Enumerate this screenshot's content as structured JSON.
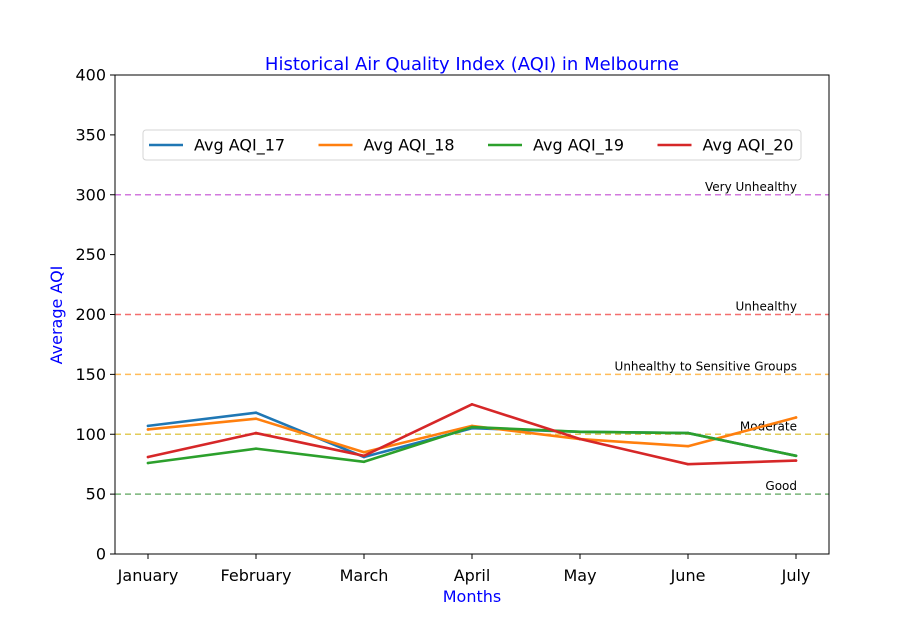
{
  "chart_data": {
    "type": "line",
    "title": "Historical Air Quality Index (AQI) in Melbourne",
    "xlabel": "Months",
    "ylabel": "Average AQI",
    "categories": [
      "January",
      "February",
      "March",
      "April",
      "May",
      "June",
      "July"
    ],
    "ylim": [
      0,
      400
    ],
    "yticks": [
      "0",
      "50",
      "100",
      "150",
      "200",
      "250",
      "300",
      "350",
      "400"
    ],
    "grid": false,
    "legend_position": "top",
    "series": [
      {
        "name": "Avg AQI_17",
        "color": "#1f77b4",
        "values": [
          107,
          118,
          81,
          105,
          102,
          101,
          82
        ]
      },
      {
        "name": "Avg AQI_18",
        "color": "#ff7f0e",
        "values": [
          104,
          113,
          85,
          107,
          96,
          90,
          114
        ]
      },
      {
        "name": "Avg AQI_19",
        "color": "#2ca02c",
        "values": [
          76,
          88,
          77,
          106,
          102,
          101,
          82
        ]
      },
      {
        "name": "Avg AQI_20",
        "color": "#d62728",
        "values": [
          81,
          101,
          82,
          125,
          96,
          75,
          78
        ]
      }
    ],
    "reference_lines": [
      {
        "value": 50,
        "label": "Good",
        "color": "#2e8b2e"
      },
      {
        "value": 100,
        "label": "Moderate",
        "color": "#d4b000"
      },
      {
        "value": 150,
        "label": "Unhealthy to Sensitive Groups",
        "color": "#ff9900"
      },
      {
        "value": 200,
        "label": "Unhealthy",
        "color": "#ee2222"
      },
      {
        "value": 300,
        "label": "Very Unhealthy",
        "color": "#bb33cc"
      }
    ],
    "title_color": "#0000ff",
    "axis_label_color": "#0000ff"
  }
}
